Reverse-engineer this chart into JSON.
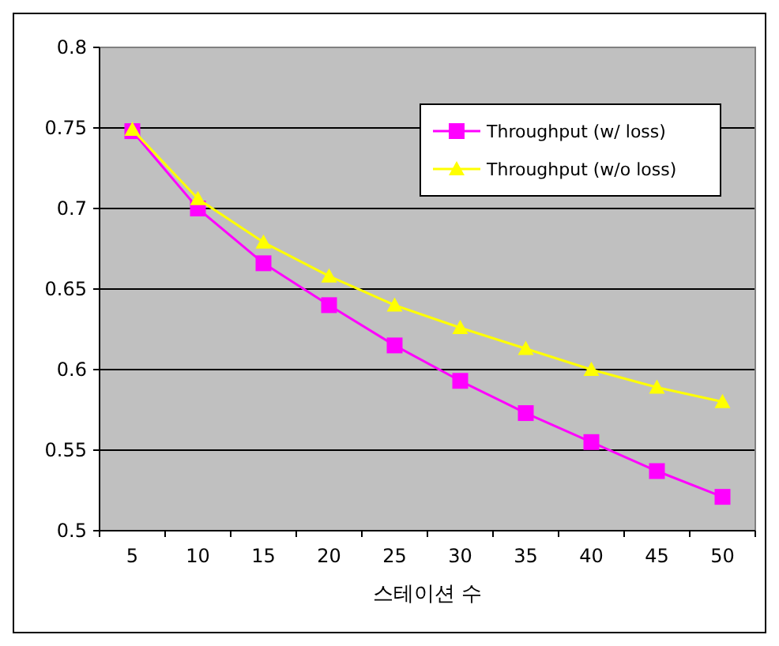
{
  "chart_data": {
    "type": "line",
    "xlabel": "스테이션 수",
    "categories": [
      "5",
      "10",
      "15",
      "20",
      "25",
      "30",
      "35",
      "40",
      "45",
      "50"
    ],
    "series": [
      {
        "name": "Throughput (w/ loss)",
        "color": "#ff00ff",
        "marker": "square",
        "values": [
          0.748,
          0.7,
          0.666,
          0.64,
          0.615,
          0.593,
          0.573,
          0.555,
          0.537,
          0.521
        ]
      },
      {
        "name": "Throughput (w/o loss)",
        "color": "#ffff00",
        "marker": "triangle",
        "values": [
          0.749,
          0.706,
          0.679,
          0.658,
          0.64,
          0.626,
          0.613,
          0.6,
          0.589,
          0.58
        ]
      }
    ],
    "ylim": [
      0.5,
      0.8
    ],
    "yticks": [
      0.5,
      0.55,
      0.6,
      0.65,
      0.7,
      0.75,
      0.8
    ],
    "grid": "y",
    "legend": "top right"
  }
}
